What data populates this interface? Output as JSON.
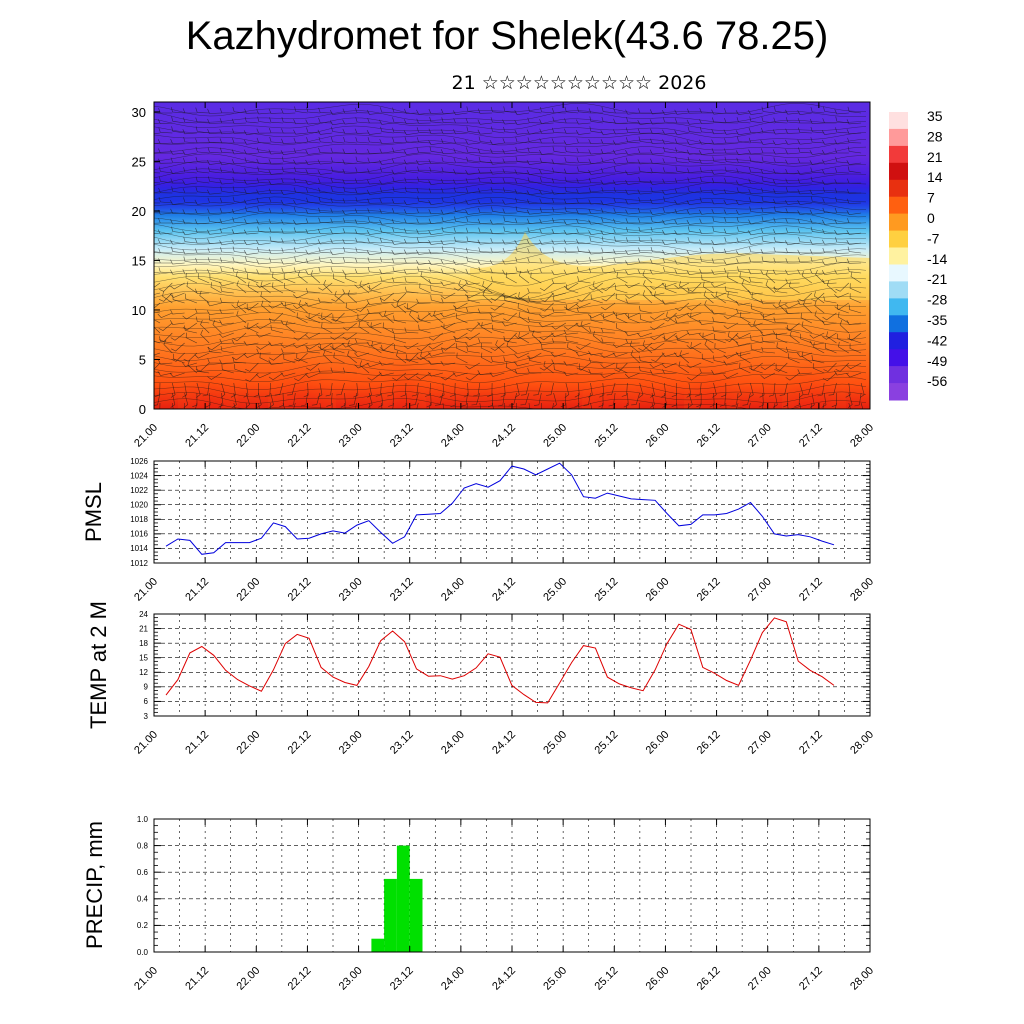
{
  "title": "Kazhydromet for Shelek(43.6 78.25)",
  "subtitle": "21 ☆☆☆☆☆☆☆☆☆☆ 2026",
  "time_ticks": [
    "21.00",
    "21.12",
    "22.00",
    "22.12",
    "23.00",
    "23.12",
    "24.00",
    "24.12",
    "25.00",
    "25.12",
    "26.00",
    "26.12",
    "27.00",
    "27.12",
    "28.00"
  ],
  "chart_data": [
    {
      "type": "heatmap",
      "name": "vertical cross-section",
      "y_ticks": [
        0,
        5,
        10,
        15,
        20,
        25,
        30
      ],
      "ylim": [
        0,
        31
      ],
      "colorbar_labels": [
        "35",
        "28",
        "21",
        "14",
        "7",
        "0",
        "-7",
        "-14",
        "-21",
        "-28",
        "-35",
        "-42",
        "-49",
        "-56"
      ],
      "colorbar_colors": [
        "#ffe0e0",
        "#ff9a9a",
        "#f23a3a",
        "#d01010",
        "#e83010",
        "#ff6010",
        "#ff9a20",
        "#ffd040",
        "#fff2a0",
        "#e8f8ff",
        "#a0dcf5",
        "#40b8f0",
        "#1070e0",
        "#2020e0",
        "#4410e8",
        "#7030e0",
        "#8a40e0"
      ],
      "grid": true
    },
    {
      "type": "line",
      "ylabel": "PMSL",
      "ylim": [
        1012,
        1026
      ],
      "y_ticks": [
        1012,
        1014,
        1016,
        1018,
        1020,
        1022,
        1024,
        1026
      ],
      "color": "#0000dd",
      "series": [
        {
          "values": [
            1014.3,
            1015.3,
            1015.1,
            1013.2,
            1013.4,
            1014.8,
            1014.8,
            1014.8,
            1015.4,
            1017.5,
            1017,
            1015.3,
            1015.4,
            1016,
            1016.4,
            1016.1,
            1017.2,
            1017.8,
            1016.2,
            1014.7,
            1015.6,
            1018.6,
            1018.7,
            1018.8,
            1020.2,
            1022.3,
            1022.9,
            1022.4,
            1023.3,
            1025.3,
            1024.9,
            1024.1,
            1024.9,
            1025.7,
            1024.1,
            1021.1,
            1020.9,
            1021.6,
            1021.2,
            1020.8,
            1020.7,
            1020.6,
            1018.8,
            1017.1,
            1017.3,
            1018.6,
            1018.6,
            1018.8,
            1019.4,
            1020.3,
            1018.4,
            1016,
            1015.7,
            1015.9,
            1015.6,
            1015,
            1014.5
          ]
        }
      ],
      "grid": true
    },
    {
      "type": "line",
      "ylabel": "TEMP at 2 M",
      "ylim": [
        3,
        24
      ],
      "y_ticks": [
        3,
        6,
        9,
        12,
        15,
        18,
        21,
        24
      ],
      "color": "#dd0000",
      "series": [
        {
          "values": [
            7.3,
            10.5,
            16,
            17.3,
            15.5,
            12.4,
            10.5,
            9.2,
            8.1,
            12.5,
            17.9,
            19.8,
            19,
            13,
            11,
            9.9,
            9.3,
            13.2,
            18.5,
            20.5,
            18.3,
            12.7,
            11.2,
            11.3,
            10.6,
            11.3,
            12.9,
            15.8,
            15.1,
            9.3,
            7.4,
            5.8,
            5.7,
            9.8,
            14,
            17.5,
            17,
            11,
            9.6,
            8.8,
            8.2,
            12.5,
            17.9,
            21.9,
            20.8,
            13,
            11.8,
            10.3,
            9.3,
            14.5,
            20.2,
            23.2,
            22.4,
            14.3,
            12.4,
            11.1,
            9.3
          ]
        }
      ],
      "grid": true
    },
    {
      "type": "bar",
      "ylabel": "PRECIP, mm",
      "ylim": [
        0,
        1.0
      ],
      "y_ticks": [
        "0.0",
        "0.2",
        "0.4",
        "0.6",
        "0.8",
        "1.0"
      ],
      "color": "#00e000",
      "bars": [
        {
          "start": 23.125,
          "end": 23.25,
          "value": 0.1
        },
        {
          "start": 23.25,
          "end": 23.375,
          "value": 0.55
        },
        {
          "start": 23.375,
          "end": 23.5,
          "value": 0.8
        },
        {
          "start": 23.5,
          "end": 23.625,
          "value": 0.55
        }
      ],
      "grid": true
    }
  ]
}
